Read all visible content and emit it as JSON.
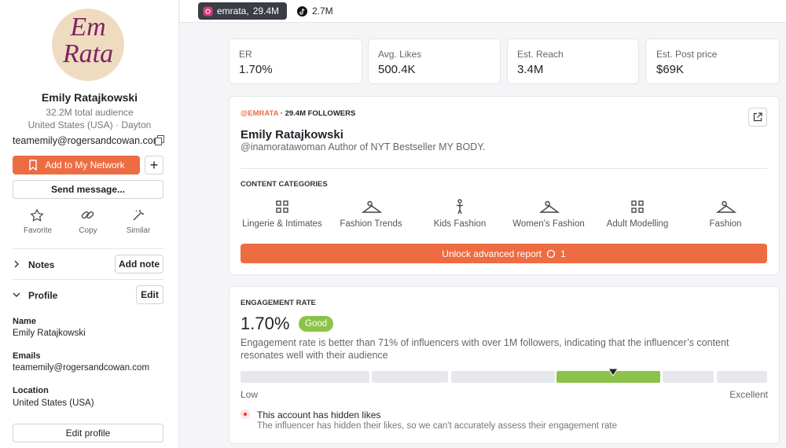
{
  "sidebar": {
    "avatar": {
      "line1": "Em",
      "line2": "Rata"
    },
    "name": "Emily Ratajkowski",
    "audience": "32.2M total audience",
    "location": "United States (USA) · Dayton",
    "email": "teamemily@rogersandcowan.com",
    "add_button": "Add to My Network",
    "send_button": "Send message...",
    "actions": [
      "Favorite",
      "Copy",
      "Similar"
    ],
    "notes": {
      "title": "Notes",
      "button": "Add note"
    },
    "profile": {
      "title": "Profile",
      "button": "Edit"
    },
    "fields": [
      {
        "label": "Name",
        "value": "Emily Ratajkowski"
      },
      {
        "label": "Emails",
        "value": "teamemily@rogersandcowan.com"
      },
      {
        "label": "Location",
        "value": "United States (USA)"
      }
    ],
    "edit_profile": "Edit profile"
  },
  "tabs": [
    {
      "handle": "emrata,",
      "followers": "29.4M"
    },
    {
      "followers": "2.7M"
    }
  ],
  "stats": [
    {
      "label": "ER",
      "value": "1.70%"
    },
    {
      "label": "Avg. Likes",
      "value": "500.4K"
    },
    {
      "label": "Est. Reach",
      "value": "3.4M"
    },
    {
      "label": "Est. Post price",
      "value": "$69K"
    }
  ],
  "account": {
    "handle": "@EMRATA",
    "followers": "· 29.4M FOLLOWERS",
    "name": "Emily Ratajkowski",
    "bio": "@inamoratawoman Author of NYT Bestseller MY BODY.",
    "categories_title": "CONTENT CATEGORIES",
    "categories": [
      "Lingerie & Intimates",
      "Fashion Trends",
      "Kids Fashion",
      "Women's Fashion",
      "Adult Modelling",
      "Fashion"
    ],
    "unlock": "Unlock advanced report",
    "unlock_count": "1"
  },
  "engagement": {
    "title": "ENGAGEMENT RATE",
    "value": "1.70%",
    "badge": "Good",
    "description": "Engagement rate is better than 71% of influencers with over 1M followers, indicating that the influencer’s content resonates well with their audience",
    "scale_low": "Low",
    "scale_high": "Excellent",
    "notice": {
      "title": "This account has hidden likes",
      "text": "The influencer has hidden their likes, so we can't accurately assess their engagement rate"
    }
  }
}
